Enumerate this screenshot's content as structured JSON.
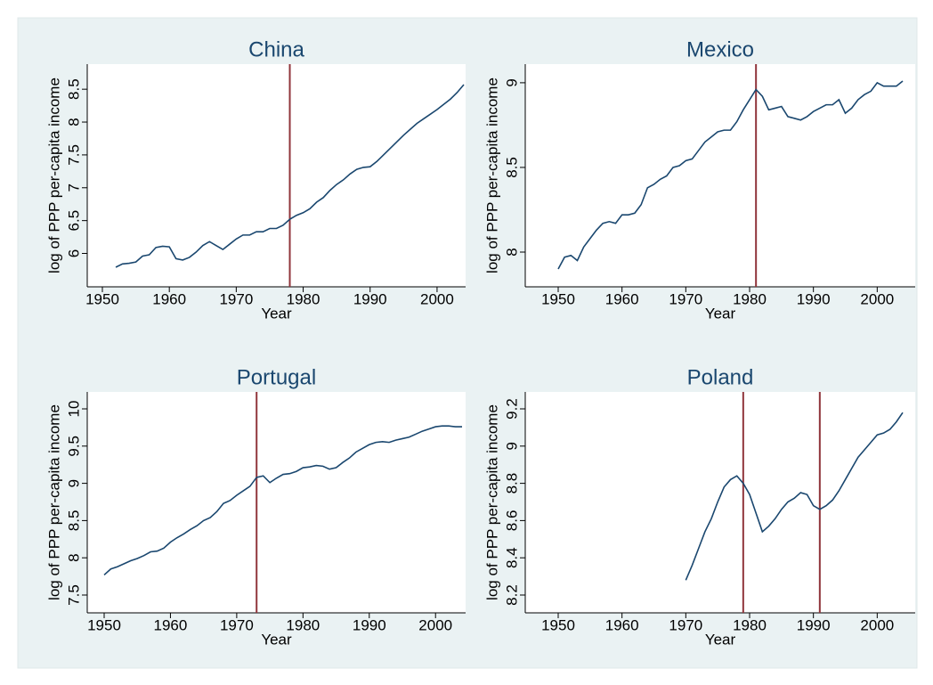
{
  "chart_data": [
    {
      "type": "line",
      "title": "China",
      "xlabel": "Year",
      "ylabel": "log of PPP per-capita income",
      "x": [
        1952,
        1953,
        1954,
        1955,
        1956,
        1957,
        1958,
        1959,
        1960,
        1961,
        1962,
        1963,
        1964,
        1965,
        1966,
        1967,
        1968,
        1969,
        1970,
        1971,
        1972,
        1973,
        1974,
        1975,
        1976,
        1977,
        1978,
        1979,
        1980,
        1981,
        1982,
        1983,
        1984,
        1985,
        1986,
        1987,
        1988,
        1989,
        1990,
        1991,
        1992,
        1993,
        1994,
        1995,
        1996,
        1997,
        1998,
        1999,
        2000,
        2001,
        2002,
        2003,
        2004
      ],
      "series": [
        {
          "color": "#1a476f",
          "values": [
            5.79,
            5.84,
            5.85,
            5.87,
            5.96,
            5.98,
            6.09,
            6.11,
            6.1,
            5.92,
            5.9,
            5.94,
            6.02,
            6.12,
            6.18,
            6.12,
            6.06,
            6.14,
            6.22,
            6.28,
            6.28,
            6.33,
            6.33,
            6.38,
            6.38,
            6.43,
            6.52,
            6.58,
            6.62,
            6.68,
            6.78,
            6.85,
            6.96,
            7.05,
            7.12,
            7.21,
            7.28,
            7.31,
            7.32,
            7.4,
            7.5,
            7.6,
            7.7,
            7.8,
            7.89,
            7.98,
            8.05,
            8.12,
            8.19,
            8.27,
            8.35,
            8.45,
            8.57
          ]
        }
      ],
      "reference_lines": {
        "values": [
          1978
        ],
        "color": "#90353b"
      },
      "xlim": [
        1950,
        2004
      ],
      "xticks": [
        1950,
        1960,
        1970,
        1980,
        1990,
        2000
      ],
      "ylim": [
        5.79,
        8.57
      ],
      "yticks": [
        6,
        6.5,
        7,
        7.5,
        8,
        8.5
      ]
    },
    {
      "type": "line",
      "title": "Mexico",
      "xlabel": "Year",
      "ylabel": "log of PPP per-capita income",
      "x": [
        1950,
        1951,
        1952,
        1953,
        1954,
        1955,
        1956,
        1957,
        1958,
        1959,
        1960,
        1961,
        1962,
        1963,
        1964,
        1965,
        1966,
        1967,
        1968,
        1969,
        1970,
        1971,
        1972,
        1973,
        1974,
        1975,
        1976,
        1977,
        1978,
        1979,
        1980,
        1981,
        1982,
        1983,
        1984,
        1985,
        1986,
        1987,
        1988,
        1989,
        1990,
        1991,
        1992,
        1993,
        1994,
        1995,
        1996,
        1997,
        1998,
        1999,
        2000,
        2001,
        2002,
        2003,
        2004
      ],
      "series": [
        {
          "color": "#1a476f",
          "values": [
            7.9,
            7.97,
            7.98,
            7.95,
            8.03,
            8.08,
            8.13,
            8.17,
            8.18,
            8.17,
            8.22,
            8.22,
            8.23,
            8.28,
            8.38,
            8.4,
            8.43,
            8.45,
            8.5,
            8.51,
            8.54,
            8.55,
            8.6,
            8.65,
            8.68,
            8.71,
            8.72,
            8.72,
            8.77,
            8.84,
            8.9,
            8.96,
            8.92,
            8.84,
            8.85,
            8.86,
            8.8,
            8.79,
            8.78,
            8.8,
            8.83,
            8.85,
            8.87,
            8.87,
            8.9,
            8.82,
            8.85,
            8.9,
            8.93,
            8.95,
            9.0,
            8.98,
            8.98,
            8.98,
            9.01
          ]
        }
      ],
      "reference_lines": {
        "values": [
          1981
        ],
        "color": "#90353b"
      },
      "xlim": [
        1950,
        2004
      ],
      "xticks": [
        1950,
        1960,
        1970,
        1980,
        1990,
        2000
      ],
      "ylim": [
        7.9,
        9.01
      ],
      "yticks": [
        8,
        8.5,
        9
      ]
    },
    {
      "type": "line",
      "title": "Portugal",
      "xlabel": "Year",
      "ylabel": "log of PPP per-capita income",
      "x": [
        1950,
        1951,
        1952,
        1953,
        1954,
        1955,
        1956,
        1957,
        1958,
        1959,
        1960,
        1961,
        1962,
        1963,
        1964,
        1965,
        1966,
        1967,
        1968,
        1969,
        1970,
        1971,
        1972,
        1973,
        1974,
        1975,
        1976,
        1977,
        1978,
        1979,
        1980,
        1981,
        1982,
        1983,
        1984,
        1985,
        1986,
        1987,
        1988,
        1989,
        1990,
        1991,
        1992,
        1993,
        1994,
        1995,
        1996,
        1997,
        1998,
        1999,
        2000,
        2001,
        2002,
        2003,
        2004
      ],
      "series": [
        {
          "color": "#1a476f",
          "values": [
            7.77,
            7.85,
            7.88,
            7.92,
            7.96,
            7.99,
            8.03,
            8.08,
            8.09,
            8.13,
            8.21,
            8.27,
            8.32,
            8.38,
            8.43,
            8.5,
            8.54,
            8.62,
            8.73,
            8.77,
            8.84,
            8.9,
            8.96,
            9.08,
            9.1,
            9.01,
            9.07,
            9.12,
            9.13,
            9.16,
            9.21,
            9.22,
            9.24,
            9.23,
            9.19,
            9.21,
            9.28,
            9.34,
            9.42,
            9.47,
            9.52,
            9.55,
            9.56,
            9.55,
            9.58,
            9.6,
            9.62,
            9.66,
            9.7,
            9.73,
            9.76,
            9.77,
            9.77,
            9.76,
            9.76
          ]
        }
      ],
      "reference_lines": {
        "values": [
          1973
        ],
        "color": "#90353b"
      },
      "xlim": [
        1950,
        2004
      ],
      "xticks": [
        1950,
        1960,
        1970,
        1980,
        1990,
        2000
      ],
      "ylim": [
        7.5,
        10
      ],
      "yticks": [
        7.5,
        8,
        8.5,
        9,
        9.5,
        10
      ]
    },
    {
      "type": "line",
      "title": "Poland",
      "xlabel": "Year",
      "ylabel": "log of PPP per-capita income",
      "x": [
        1970,
        1971,
        1972,
        1973,
        1974,
        1975,
        1976,
        1977,
        1978,
        1979,
        1980,
        1981,
        1982,
        1983,
        1984,
        1985,
        1986,
        1987,
        1988,
        1989,
        1990,
        1991,
        1992,
        1993,
        1994,
        1995,
        1996,
        1997,
        1998,
        1999,
        2000,
        2001,
        2002,
        2003,
        2004
      ],
      "series": [
        {
          "color": "#1a476f",
          "values": [
            8.28,
            8.36,
            8.45,
            8.54,
            8.61,
            8.7,
            8.78,
            8.82,
            8.84,
            8.8,
            8.74,
            8.64,
            8.54,
            8.57,
            8.61,
            8.66,
            8.7,
            8.72,
            8.75,
            8.74,
            8.68,
            8.66,
            8.68,
            8.71,
            8.76,
            8.82,
            8.88,
            8.94,
            8.98,
            9.02,
            9.06,
            9.07,
            9.09,
            9.13,
            9.18
          ]
        }
      ],
      "reference_lines": {
        "values": [
          1979,
          1991
        ],
        "color": "#90353b"
      },
      "xlim": [
        1950,
        2004
      ],
      "xticks": [
        1950,
        1960,
        1970,
        1980,
        1990,
        2000
      ],
      "ylim": [
        8.2,
        9.2
      ],
      "yticks": [
        8.2,
        8.4,
        8.6,
        8.8,
        9,
        9.2
      ]
    }
  ]
}
